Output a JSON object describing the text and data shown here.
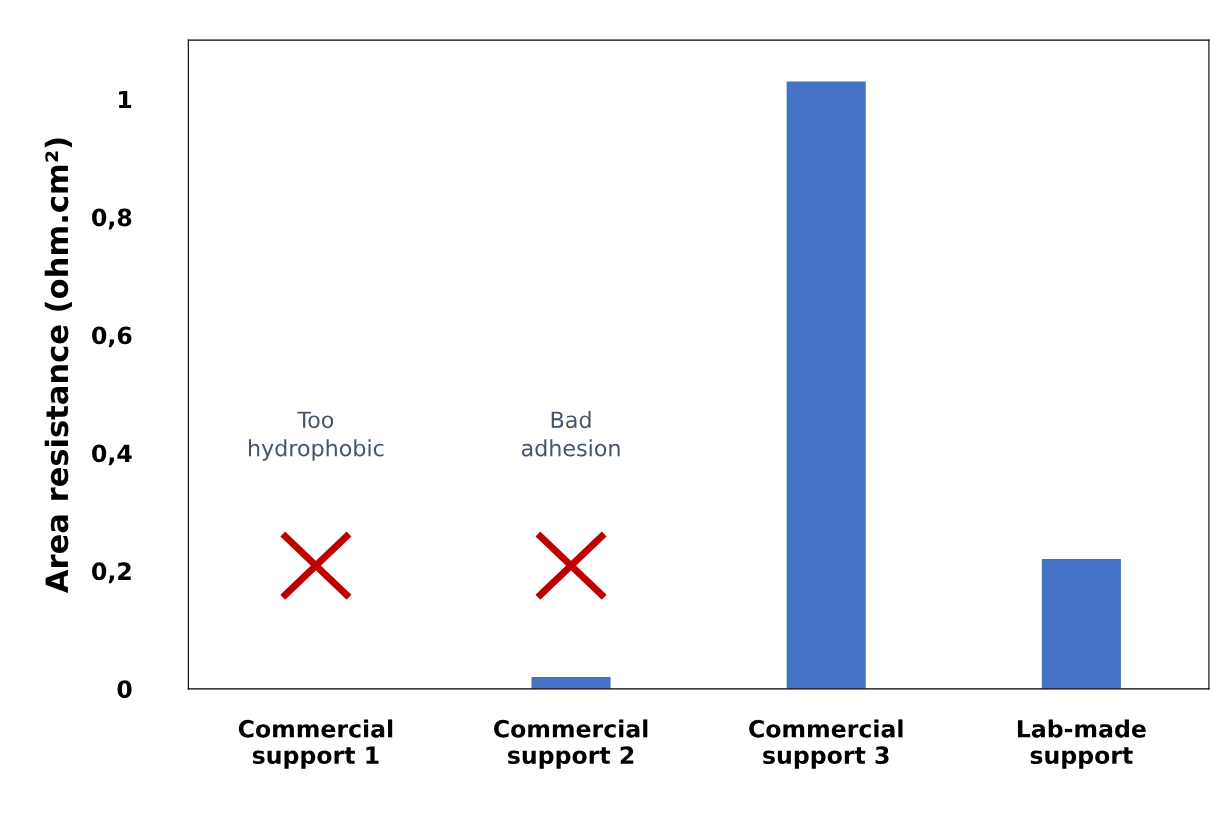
{
  "chart_data": {
    "type": "bar",
    "ylabel": "Area resistance (ohm.cm²)",
    "categories": [
      "Commercial\nsupport 1",
      "Commercial\nsupport 2",
      "Commercial\nsupport 3",
      "Lab-made\nsupport"
    ],
    "values": [
      null,
      0.02,
      1.03,
      0.22
    ],
    "color": "#4472c4",
    "ylim": [
      0,
      1.1
    ],
    "yticks": [
      0,
      {
        "value": 0.2,
        "label": "0,2"
      },
      {
        "value": 0.4,
        "label": "0,4"
      },
      {
        "value": 0.6,
        "label": "0,6"
      },
      {
        "value": 0.8,
        "label": "0,8"
      },
      1
    ],
    "grid": false,
    "annotations": [
      "Too\nhydrophobic",
      "Bad\nadhesion"
    ]
  }
}
